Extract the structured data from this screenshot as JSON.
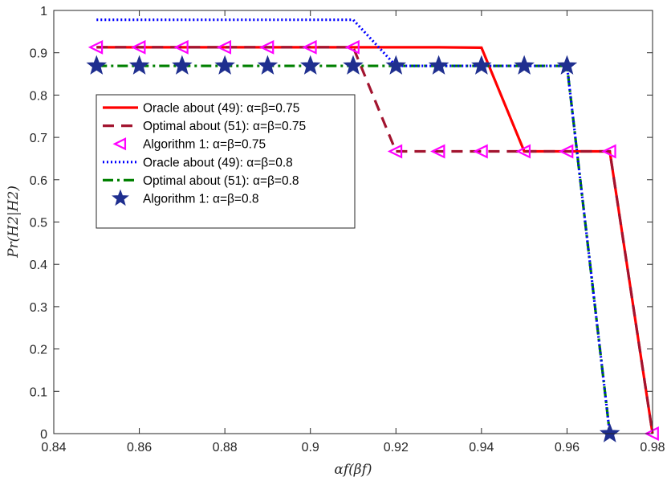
{
  "chart_data": {
    "type": "line",
    "xlabel": "αf(βf)",
    "ylabel": "Pr(H2|H2)",
    "xlim": [
      0.84,
      0.98
    ],
    "ylim": [
      0,
      1
    ],
    "x_ticks": [
      "0.84",
      "0.86",
      "0.88",
      "0.9",
      "0.92",
      "0.94",
      "0.96",
      "0.98"
    ],
    "y_ticks": [
      "0",
      "0.1",
      "0.2",
      "0.3",
      "0.4",
      "0.5",
      "0.6",
      "0.7",
      "0.8",
      "0.9",
      "1"
    ],
    "grid": false,
    "legend_position": "upper-left",
    "series": [
      {
        "name": "Oracle about (49):  α=β=0.75",
        "color": "#ff0000",
        "style": "solid",
        "marker": "none",
        "x": [
          0.85,
          0.86,
          0.87,
          0.88,
          0.89,
          0.9,
          0.91,
          0.92,
          0.93,
          0.94,
          0.95,
          0.96,
          0.97,
          0.98
        ],
        "y": [
          0.913,
          0.913,
          0.913,
          0.913,
          0.913,
          0.913,
          0.913,
          0.913,
          0.913,
          0.912,
          0.667,
          0.667,
          0.667,
          0
        ]
      },
      {
        "name": "Optimal about (51):  α=β=0.75",
        "color": "#a2142f",
        "style": "dashed",
        "marker": "none",
        "x": [
          0.85,
          0.86,
          0.87,
          0.88,
          0.89,
          0.9,
          0.91,
          0.92,
          0.93,
          0.94,
          0.95,
          0.96,
          0.97,
          0.98
        ],
        "y": [
          0.913,
          0.913,
          0.913,
          0.913,
          0.913,
          0.913,
          0.913,
          0.667,
          0.667,
          0.667,
          0.667,
          0.667,
          0.667,
          0
        ]
      },
      {
        "name": "Algorithm 1:  α=β=0.75",
        "color": "#ff00ff",
        "style": "none",
        "marker": "triangle-left",
        "x": [
          0.85,
          0.86,
          0.87,
          0.88,
          0.89,
          0.9,
          0.91,
          0.92,
          0.93,
          0.94,
          0.95,
          0.96,
          0.97,
          0.98
        ],
        "y": [
          0.913,
          0.913,
          0.913,
          0.913,
          0.913,
          0.913,
          0.913,
          0.667,
          0.667,
          0.667,
          0.667,
          0.667,
          0.667,
          0
        ]
      },
      {
        "name": "Oracle about (49):  α=β=0.8",
        "color": "#0000ff",
        "style": "dotted",
        "marker": "none",
        "x": [
          0.85,
          0.86,
          0.87,
          0.88,
          0.89,
          0.9,
          0.91,
          0.92,
          0.93,
          0.94,
          0.95,
          0.96,
          0.97
        ],
        "y": [
          0.978,
          0.978,
          0.978,
          0.978,
          0.978,
          0.978,
          0.978,
          0.869,
          0.869,
          0.869,
          0.869,
          0.869,
          0
        ]
      },
      {
        "name": "Optimal about (51):  α=β=0.8",
        "color": "#008000",
        "style": "dashdot",
        "marker": "none",
        "x": [
          0.85,
          0.86,
          0.87,
          0.88,
          0.89,
          0.9,
          0.91,
          0.92,
          0.93,
          0.94,
          0.95,
          0.96,
          0.97
        ],
        "y": [
          0.869,
          0.869,
          0.869,
          0.869,
          0.869,
          0.869,
          0.869,
          0.869,
          0.869,
          0.869,
          0.869,
          0.869,
          0
        ]
      },
      {
        "name": "Algorithm 1:  α=β=0.8",
        "color": "#1f2f8f",
        "style": "none",
        "marker": "star",
        "x": [
          0.85,
          0.86,
          0.87,
          0.88,
          0.89,
          0.9,
          0.91,
          0.92,
          0.93,
          0.94,
          0.95,
          0.96,
          0.97
        ],
        "y": [
          0.869,
          0.869,
          0.869,
          0.869,
          0.869,
          0.869,
          0.869,
          0.869,
          0.869,
          0.869,
          0.869,
          0.869,
          0
        ]
      }
    ]
  }
}
